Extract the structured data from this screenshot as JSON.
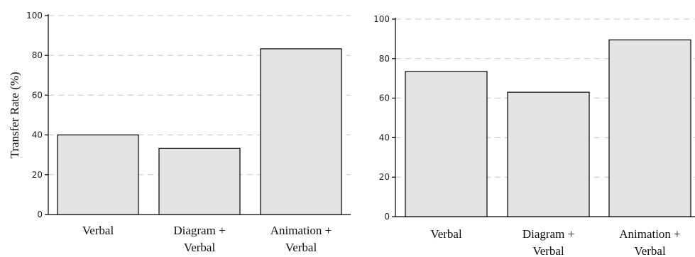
{
  "chart_data": [
    {
      "type": "bar",
      "ylabel": "Transfer Rate (%)",
      "ylim": [
        0,
        100
      ],
      "yticks": [
        0,
        20,
        40,
        60,
        80,
        100
      ],
      "grid": true,
      "categories": [
        [
          "Verbal"
        ],
        [
          "Diagram +",
          "Verbal"
        ],
        [
          "Animation +",
          "Verbal"
        ]
      ],
      "values": [
        40,
        33.3,
        83.3
      ],
      "bar_color": "#e4e4e4"
    },
    {
      "type": "bar",
      "ylabel": "",
      "ylim": [
        0,
        100
      ],
      "yticks": [
        0,
        20,
        40,
        60,
        80,
        100
      ],
      "grid": true,
      "categories": [
        [
          "Verbal"
        ],
        [
          "Diagram +",
          "Verbal"
        ],
        [
          "Animation +",
          "Verbal"
        ]
      ],
      "values": [
        73.5,
        63,
        89.5
      ],
      "bar_color": "#e4e4e4"
    }
  ]
}
